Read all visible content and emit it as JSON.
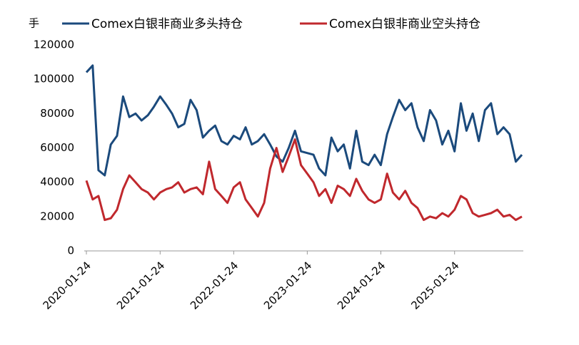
{
  "chart_data": {
    "type": "line",
    "y_label": "手",
    "x": [
      "2020-01-24",
      "2020-02-24",
      "2020-03-24",
      "2020-04-24",
      "2020-05-24",
      "2020-06-24",
      "2020-07-24",
      "2020-08-24",
      "2020-09-24",
      "2020-10-24",
      "2020-11-24",
      "2020-12-24",
      "2021-01-24",
      "2021-02-24",
      "2021-03-24",
      "2021-04-24",
      "2021-05-24",
      "2021-06-24",
      "2021-07-24",
      "2021-08-24",
      "2021-09-24",
      "2021-10-24",
      "2021-11-24",
      "2021-12-24",
      "2022-01-24",
      "2022-02-24",
      "2022-03-24",
      "2022-04-24",
      "2022-05-24",
      "2022-06-24",
      "2022-07-24",
      "2022-08-24",
      "2022-09-24",
      "2022-10-24",
      "2022-11-24",
      "2022-12-24",
      "2023-01-24",
      "2023-02-24",
      "2023-03-24",
      "2023-04-24",
      "2023-05-24",
      "2023-06-24",
      "2023-07-24",
      "2023-08-24",
      "2023-09-24",
      "2023-10-24",
      "2023-11-24",
      "2023-12-24",
      "2024-01-24",
      "2024-02-24",
      "2024-03-24",
      "2024-04-24",
      "2024-05-24",
      "2024-06-24",
      "2024-07-24",
      "2024-08-24",
      "2024-09-24",
      "2024-10-24",
      "2024-11-24",
      "2024-12-24",
      "2025-01-24",
      "2025-02-24",
      "2025-03-24",
      "2025-04-24",
      "2025-05-24",
      "2025-06-24",
      "2025-07-24",
      "2025-08-24",
      "2025-09-24",
      "2025-10-24",
      "2025-11-24",
      "2025-12-24"
    ],
    "series": [
      {
        "name": "Comex白银非商业多头持仓",
        "color": "#1b4a7c",
        "values": [
          104000,
          108000,
          47000,
          44000,
          62000,
          67000,
          90000,
          78000,
          80000,
          76000,
          79000,
          84000,
          90000,
          85000,
          80000,
          72000,
          74000,
          88000,
          82000,
          66000,
          70000,
          73000,
          64000,
          62000,
          67000,
          65000,
          72000,
          62000,
          64000,
          68000,
          62000,
          55000,
          52000,
          60000,
          70000,
          58000,
          57000,
          56000,
          48000,
          44000,
          66000,
          58000,
          62000,
          48000,
          70000,
          52000,
          50000,
          56000,
          50000,
          68000,
          78000,
          88000,
          82000,
          86000,
          72000,
          64000,
          82000,
          76000,
          62000,
          70000,
          58000,
          86000,
          70000,
          80000,
          64000,
          82000,
          86000,
          68000,
          72000,
          68000,
          52000,
          56000
        ]
      },
      {
        "name": "Comex白银非商业空头持仓",
        "color": "#c0282d",
        "values": [
          41000,
          30000,
          32000,
          18000,
          19000,
          24000,
          36000,
          44000,
          40000,
          36000,
          34000,
          30000,
          34000,
          36000,
          37000,
          40000,
          34000,
          36000,
          37000,
          33000,
          52000,
          36000,
          32000,
          28000,
          37000,
          40000,
          30000,
          25000,
          20000,
          28000,
          48000,
          60000,
          46000,
          55000,
          65000,
          50000,
          45000,
          40000,
          32000,
          36000,
          28000,
          38000,
          36000,
          32000,
          42000,
          35000,
          30000,
          28000,
          30000,
          45000,
          34000,
          30000,
          35000,
          28000,
          25000,
          18000,
          20000,
          19000,
          22000,
          20000,
          24000,
          32000,
          30000,
          22000,
          20000,
          21000,
          22000,
          24000,
          20000,
          21000,
          18000,
          20000
        ]
      }
    ],
    "xlim": [
      "2020-01-24",
      "2025-12-24"
    ],
    "xticks": [
      "2020-01-24",
      "2021-01-24",
      "2022-01-24",
      "2023-01-24",
      "2024-01-24",
      "2025-01-24"
    ],
    "ylim": [
      0,
      120000
    ],
    "yticks": [
      0,
      20000,
      40000,
      60000,
      80000,
      100000,
      120000
    ],
    "grid": false
  }
}
